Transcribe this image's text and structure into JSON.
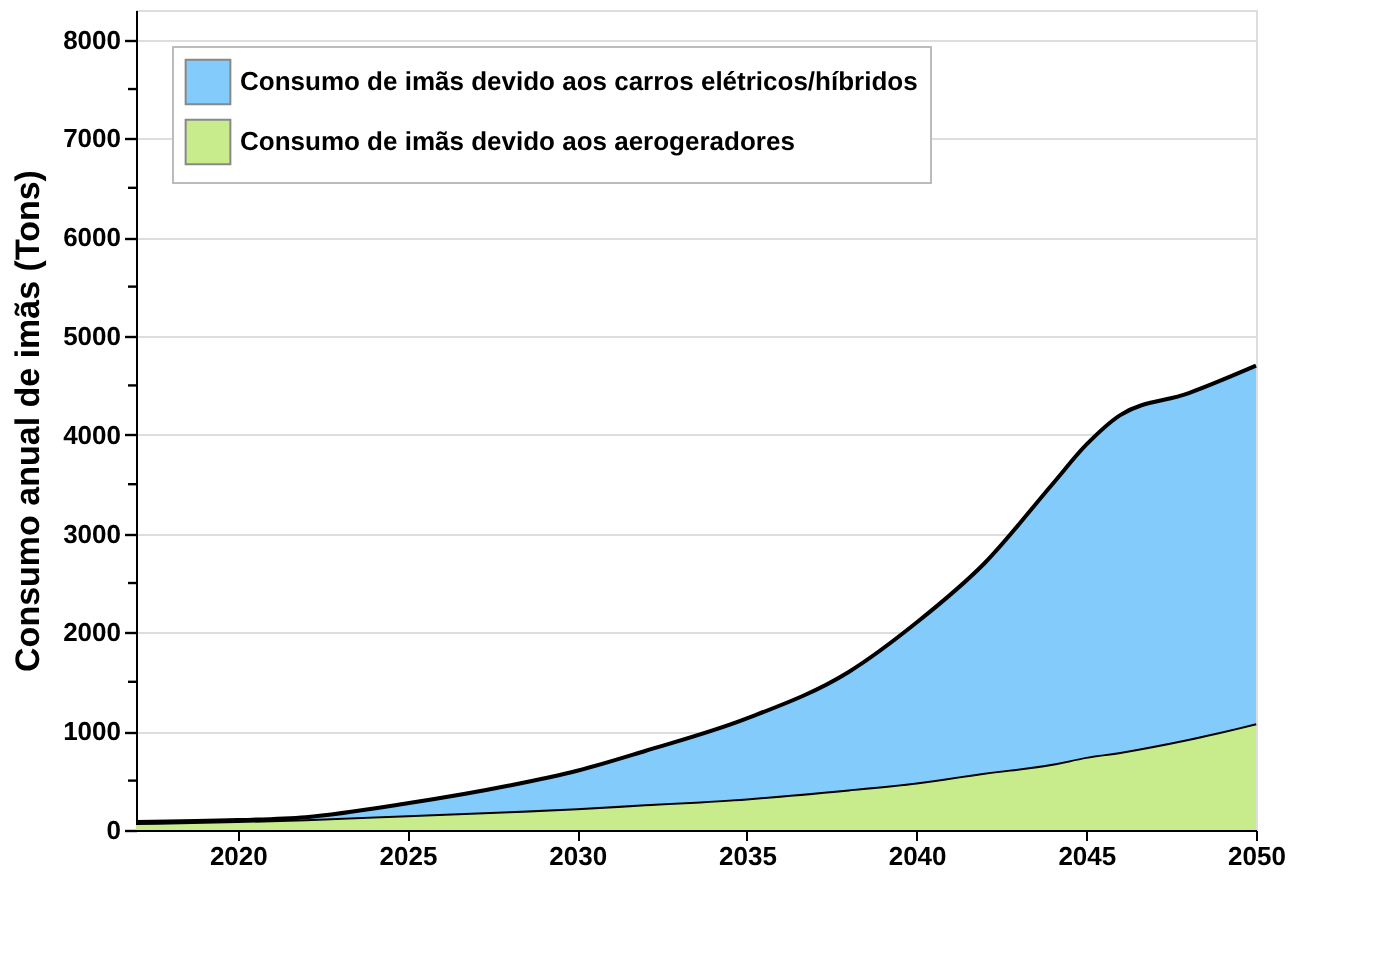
{
  "chart_data": {
    "type": "area",
    "stacked": true,
    "ylabel": "Consumo anual de imãs (Tons)",
    "x": [
      2017,
      2020,
      2022,
      2025,
      2028,
      2030,
      2032,
      2035,
      2038,
      2040,
      2042,
      2044,
      2045,
      2046,
      2048,
      2050
    ],
    "series": [
      {
        "name": "Consumo de imãs devido aos aerogeradores",
        "color": "#c8ec8c",
        "values": [
          70,
          90,
          110,
          150,
          190,
          220,
          260,
          320,
          410,
          480,
          580,
          670,
          740,
          790,
          920,
          1080
        ]
      },
      {
        "name": "Consumo de imãs devido aos carros elétricos/híbridos",
        "color": "#82cbfa",
        "values": [
          10,
          10,
          20,
          120,
          260,
          380,
          540,
          810,
          1190,
          1620,
          2120,
          2830,
          3160,
          3410,
          3500,
          3620
        ]
      }
    ],
    "xlim": [
      2017,
      2050
    ],
    "xticks": [
      2020,
      2025,
      2030,
      2035,
      2040,
      2045,
      2050
    ],
    "ylim": [
      0,
      8300
    ],
    "yticks": [
      0,
      {
        "value": 500,
        "label": null
      },
      1000,
      {
        "value": 1500,
        "label": null
      },
      2000,
      {
        "value": 2500,
        "label": null
      },
      3000,
      {
        "value": 3500,
        "label": null
      },
      4000,
      {
        "value": 4500,
        "label": null
      },
      5000,
      {
        "value": 5500,
        "label": null
      },
      6000,
      {
        "value": 6500,
        "label": null
      },
      7000,
      {
        "value": 7500,
        "label": null
      },
      8000
    ],
    "grid": "y",
    "legend": "top left"
  }
}
